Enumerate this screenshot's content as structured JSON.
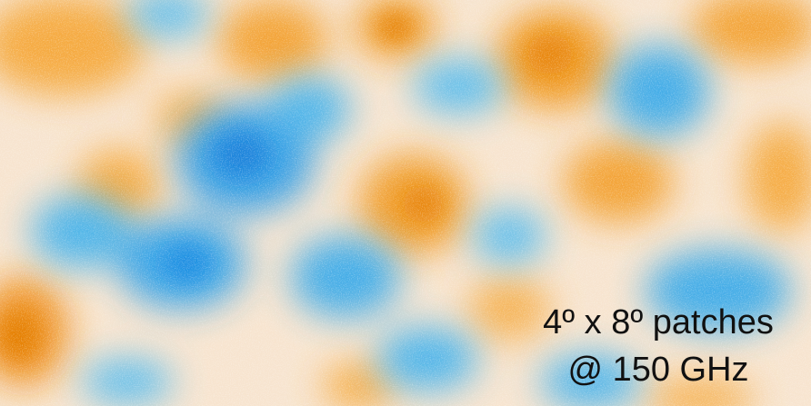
{
  "caption": {
    "lines": [
      "4º x 8º patches",
      "@ 150 GHz"
    ]
  }
}
